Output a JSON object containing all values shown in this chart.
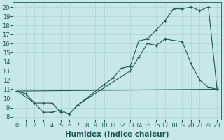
{
  "xlabel": "Humidex (Indice chaleur)",
  "xlim_min": -0.5,
  "xlim_max": 23.5,
  "ylim_min": 7.7,
  "ylim_max": 20.5,
  "xticks": [
    0,
    1,
    2,
    3,
    4,
    5,
    6,
    7,
    8,
    9,
    10,
    11,
    12,
    13,
    14,
    15,
    16,
    17,
    18,
    19,
    20,
    21,
    22,
    23
  ],
  "yticks": [
    8,
    9,
    10,
    11,
    12,
    13,
    14,
    15,
    16,
    17,
    18,
    19,
    20
  ],
  "bg_color": "#c8e8e8",
  "grid_color": "#a8cccc",
  "line_color": "#1a5858",
  "curve1_x": [
    0,
    1,
    2,
    3,
    4,
    5,
    6,
    7,
    13,
    14,
    15,
    16,
    17,
    19,
    20,
    21,
    22,
    23
  ],
  "curve1_y": [
    10.8,
    10.5,
    9.5,
    8.5,
    8.5,
    8.7,
    8.3,
    9.3,
    13.0,
    14.5,
    16.0,
    15.8,
    16.5,
    16.2,
    13.8,
    12.0,
    11.2,
    11.0
  ],
  "curve2_x": [
    0,
    2,
    3,
    4,
    5,
    6,
    7,
    10,
    11,
    12,
    13,
    14,
    15,
    16,
    17,
    18,
    19,
    20,
    21,
    22,
    23
  ],
  "curve2_y": [
    10.8,
    9.5,
    9.5,
    9.5,
    8.5,
    8.3,
    9.3,
    11.5,
    12.2,
    13.3,
    13.5,
    16.3,
    16.5,
    17.5,
    18.5,
    19.8,
    19.8,
    20.0,
    19.6,
    20.0,
    11.0
  ],
  "curve3_x": [
    0,
    23
  ],
  "curve3_y": [
    10.8,
    11.0
  ],
  "tickfont_size": 6,
  "label_font_size": 7.5
}
